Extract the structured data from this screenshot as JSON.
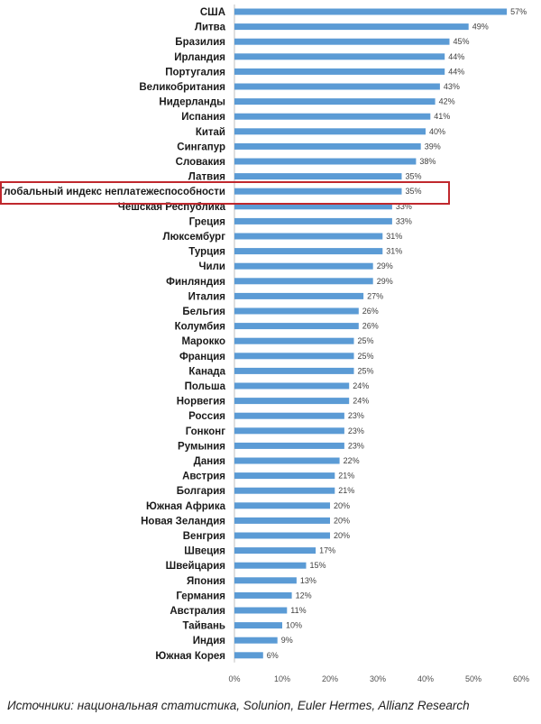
{
  "chart_data": {
    "type": "bar",
    "orientation": "horizontal",
    "categories": [
      "США",
      "Литва",
      "Бразилия",
      "Ирландия",
      "Португалия",
      "Великобритания",
      "Нидерланды",
      "Испания",
      "Китай",
      "Сингапур",
      "Словакия",
      "Латвия",
      "Глобальный индекс неплатежеспособности",
      "Чешская Республика",
      "Греция",
      "Люксембург",
      "Турция",
      "Чили",
      "Финляндия",
      "Италия",
      "Бельгия",
      "Колумбия",
      "Марокко",
      "Франция",
      "Канада",
      "Польша",
      "Норвегия",
      "Россия",
      "Гонконг",
      "Румыния",
      "Дания",
      "Австрия",
      "Болгария",
      "Южная Африка",
      "Новая Зеландия",
      "Венгрия",
      "Швеция",
      "Швейцария",
      "Япония",
      "Германия",
      "Австралия",
      "Тайвань",
      "Индия",
      "Южная Корея"
    ],
    "values": [
      57,
      49,
      45,
      44,
      44,
      43,
      42,
      41,
      40,
      39,
      38,
      35,
      35,
      33,
      33,
      31,
      31,
      29,
      29,
      27,
      26,
      26,
      25,
      25,
      25,
      24,
      24,
      23,
      23,
      23,
      22,
      21,
      21,
      20,
      20,
      20,
      17,
      15,
      13,
      12,
      11,
      10,
      9,
      6
    ],
    "value_labels": [
      "57%",
      "49%",
      "45%",
      "44%",
      "44%",
      "43%",
      "42%",
      "41%",
      "40%",
      "39%",
      "38%",
      "35%",
      "35%",
      "33%",
      "33%",
      "31%",
      "31%",
      "29%",
      "29%",
      "27%",
      "26%",
      "26%",
      "25%",
      "25%",
      "25%",
      "24%",
      "24%",
      "23%",
      "23%",
      "23%",
      "22%",
      "21%",
      "21%",
      "20%",
      "20%",
      "20%",
      "17%",
      "15%",
      "13%",
      "12%",
      "11%",
      "10%",
      "9%",
      "6%"
    ],
    "highlighted_category": "Глобальный индекс неплатежеспособности",
    "highlight_color": "#c0282d",
    "bar_color": "#5b9bd5",
    "xlim": [
      0,
      60
    ],
    "x_ticks": [
      "0%",
      "10%",
      "20%",
      "30%",
      "40%",
      "50%",
      "60%"
    ],
    "grid": false,
    "title": "",
    "xlabel": "",
    "ylabel": ""
  },
  "source": "Источники: национальная статистика, Solunion, Euler Hermes, Allianz Research"
}
